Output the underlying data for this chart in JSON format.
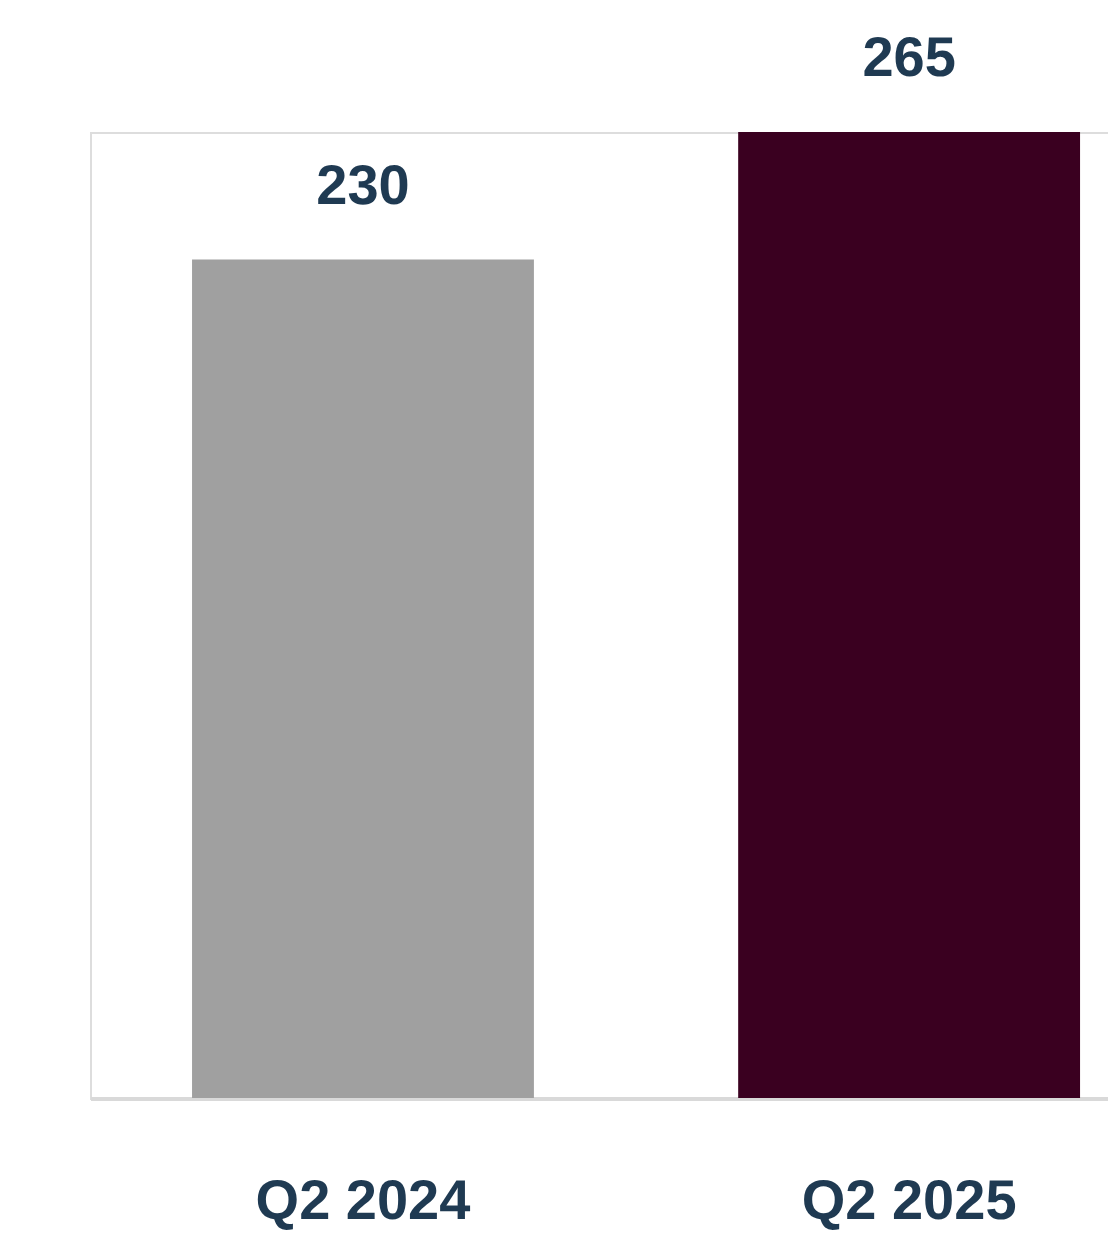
{
  "chart_data": {
    "type": "bar",
    "categories": [
      "Q2 2024",
      "Q2 2025"
    ],
    "values": [
      230,
      265
    ],
    "colors": [
      "#a0a0a0",
      "#3a0020"
    ],
    "data_labels": true,
    "tick_labels": "x"
  }
}
